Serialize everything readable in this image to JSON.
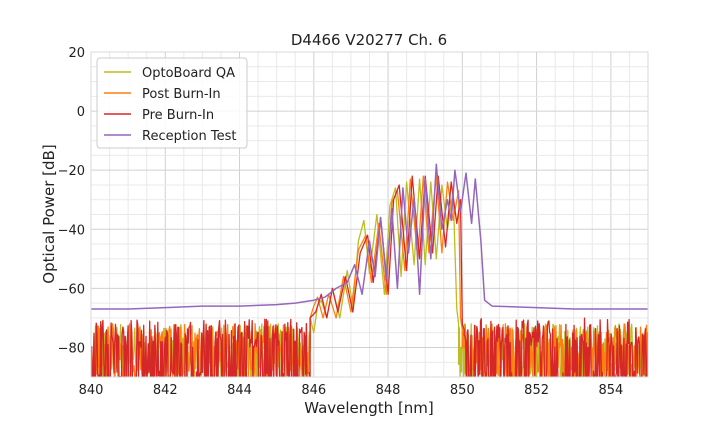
{
  "chart_data": {
    "type": "line",
    "title": "D4466 V20277 Ch. 6",
    "xlabel": "Wavelength [nm]",
    "ylabel": "Optical Power [dB]",
    "xlim": [
      840,
      855
    ],
    "ylim": [
      -90,
      20
    ],
    "xticks": [
      840,
      842,
      844,
      846,
      848,
      850,
      852,
      854
    ],
    "yticks": [
      20,
      0,
      -20,
      -40,
      -60,
      -80
    ],
    "grid": true,
    "legend_position": "top-left",
    "series": [
      {
        "name": "OptoBoard QA",
        "color": "#bcbd22",
        "noise_floor": [
          -84,
          -72
        ],
        "points": [
          [
            845.9,
            -70
          ],
          [
            846.0,
            -75
          ],
          [
            846.1,
            -66
          ],
          [
            846.2,
            -64
          ],
          [
            846.35,
            -70
          ],
          [
            846.5,
            -60
          ],
          [
            846.7,
            -70
          ],
          [
            846.9,
            -54
          ],
          [
            847.05,
            -66
          ],
          [
            847.2,
            -44
          ],
          [
            847.35,
            -37
          ],
          [
            847.5,
            -55
          ],
          [
            847.7,
            -35
          ],
          [
            847.9,
            -62
          ],
          [
            848.05,
            -32
          ],
          [
            848.2,
            -26
          ],
          [
            848.35,
            -56
          ],
          [
            848.5,
            -24
          ],
          [
            848.7,
            -52
          ],
          [
            848.85,
            -23
          ],
          [
            849.0,
            -52
          ],
          [
            849.15,
            -24
          ],
          [
            849.3,
            -50
          ],
          [
            849.45,
            -25
          ],
          [
            849.6,
            -40
          ],
          [
            849.75,
            -27
          ],
          [
            849.85,
            -67
          ],
          [
            849.9,
            -72
          ]
        ]
      },
      {
        "name": "Post Burn-In",
        "color": "#ff7f0e",
        "noise_floor": [
          -84,
          -72
        ],
        "points": [
          [
            845.9,
            -70
          ],
          [
            846.0,
            -66
          ],
          [
            846.1,
            -63
          ],
          [
            846.25,
            -70
          ],
          [
            846.4,
            -62
          ],
          [
            846.6,
            -70
          ],
          [
            846.8,
            -56
          ],
          [
            847.0,
            -68
          ],
          [
            847.2,
            -47
          ],
          [
            847.4,
            -42
          ],
          [
            847.55,
            -58
          ],
          [
            847.75,
            -38
          ],
          [
            847.95,
            -62
          ],
          [
            848.1,
            -31
          ],
          [
            848.25,
            -27
          ],
          [
            848.45,
            -54
          ],
          [
            848.6,
            -23
          ],
          [
            848.8,
            -50
          ],
          [
            848.95,
            -22
          ],
          [
            849.1,
            -48
          ],
          [
            849.3,
            -22
          ],
          [
            849.45,
            -48
          ],
          [
            849.6,
            -24
          ],
          [
            849.75,
            -37
          ],
          [
            849.9,
            -27
          ],
          [
            849.95,
            -70
          ],
          [
            850.0,
            -74
          ]
        ]
      },
      {
        "name": "Pre Burn-In",
        "color": "#d62728",
        "noise_floor": [
          -88,
          -70
        ],
        "points": [
          [
            845.9,
            -70
          ],
          [
            846.05,
            -68
          ],
          [
            846.2,
            -62
          ],
          [
            846.35,
            -70
          ],
          [
            846.5,
            -60
          ],
          [
            846.65,
            -68
          ],
          [
            846.85,
            -56
          ],
          [
            847.05,
            -68
          ],
          [
            847.25,
            -48
          ],
          [
            847.45,
            -42
          ],
          [
            847.6,
            -58
          ],
          [
            847.8,
            -36
          ],
          [
            848.0,
            -62
          ],
          [
            848.15,
            -30
          ],
          [
            848.3,
            -25
          ],
          [
            848.5,
            -54
          ],
          [
            848.65,
            -22
          ],
          [
            848.85,
            -50
          ],
          [
            849.0,
            -22
          ],
          [
            849.2,
            -48
          ],
          [
            849.35,
            -22
          ],
          [
            849.55,
            -46
          ],
          [
            849.7,
            -24
          ],
          [
            849.85,
            -38
          ],
          [
            849.95,
            -30
          ],
          [
            850.0,
            -72
          ],
          [
            850.05,
            -74
          ]
        ]
      },
      {
        "name": "Reception Test",
        "color": "#9467bd",
        "points": [
          [
            840.0,
            -67
          ],
          [
            841.0,
            -67
          ],
          [
            842.0,
            -66.5
          ],
          [
            843.0,
            -66
          ],
          [
            844.0,
            -66
          ],
          [
            845.0,
            -65.5
          ],
          [
            845.5,
            -65
          ],
          [
            846.0,
            -64
          ],
          [
            846.3,
            -63
          ],
          [
            846.6,
            -60
          ],
          [
            846.9,
            -58
          ],
          [
            847.1,
            -52
          ],
          [
            847.3,
            -62
          ],
          [
            847.5,
            -44
          ],
          [
            847.65,
            -56
          ],
          [
            847.8,
            -36
          ],
          [
            847.95,
            -57
          ],
          [
            848.1,
            -33
          ],
          [
            848.25,
            -60
          ],
          [
            848.4,
            -26
          ],
          [
            848.55,
            -48
          ],
          [
            848.7,
            -29
          ],
          [
            848.85,
            -62
          ],
          [
            849.0,
            -23
          ],
          [
            849.15,
            -50
          ],
          [
            849.3,
            -18
          ],
          [
            849.45,
            -40
          ],
          [
            849.6,
            -30
          ],
          [
            849.7,
            -37
          ],
          [
            849.8,
            -20
          ],
          [
            849.95,
            -34
          ],
          [
            850.1,
            -21
          ],
          [
            850.25,
            -38
          ],
          [
            850.35,
            -23
          ],
          [
            850.5,
            -44
          ],
          [
            850.6,
            -64
          ],
          [
            850.8,
            -66
          ],
          [
            852.0,
            -66.5
          ],
          [
            853.0,
            -67
          ],
          [
            855.0,
            -67
          ]
        ]
      }
    ]
  }
}
